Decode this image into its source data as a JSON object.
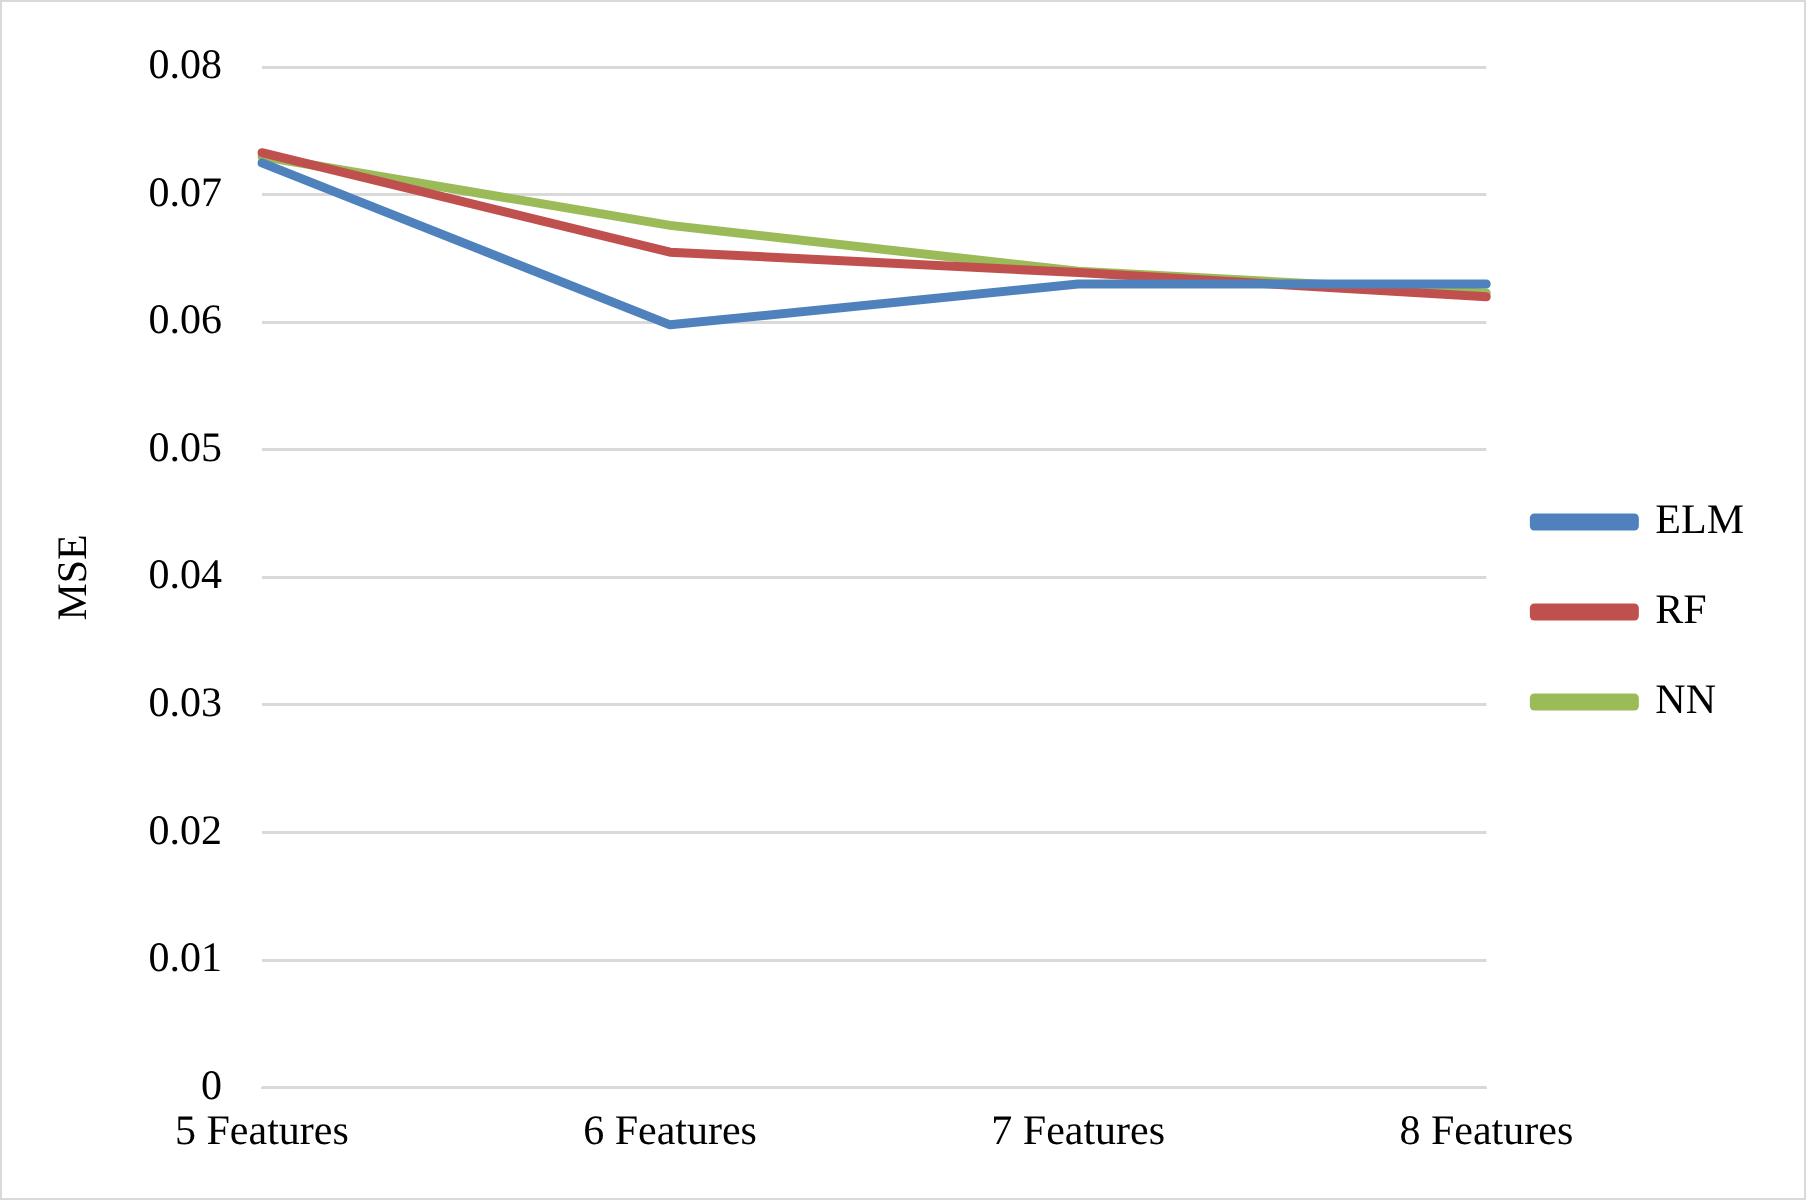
{
  "chart_data": {
    "type": "line",
    "ylabel": "MSE",
    "categories": [
      "5 Features",
      "6 Features",
      "7 Features",
      "8 Features"
    ],
    "series": [
      {
        "name": "ELM",
        "color": "#4f81bd",
        "values": [
          0.0725,
          0.0598,
          0.063,
          0.063
        ]
      },
      {
        "name": "RF",
        "color": "#c0504d",
        "values": [
          0.0733,
          0.0655,
          0.0639,
          0.062
        ]
      },
      {
        "name": "NN",
        "color": "#9bbb59",
        "values": [
          0.073,
          0.0676,
          0.064,
          0.0623
        ]
      }
    ],
    "ylim": [
      0,
      0.08
    ],
    "yticks": [
      0,
      0.01,
      0.02,
      0.03,
      0.04,
      0.05,
      0.06,
      0.07,
      0.08
    ],
    "grid": "y",
    "legend": "right",
    "marker": "none",
    "line_style": "solid"
  }
}
